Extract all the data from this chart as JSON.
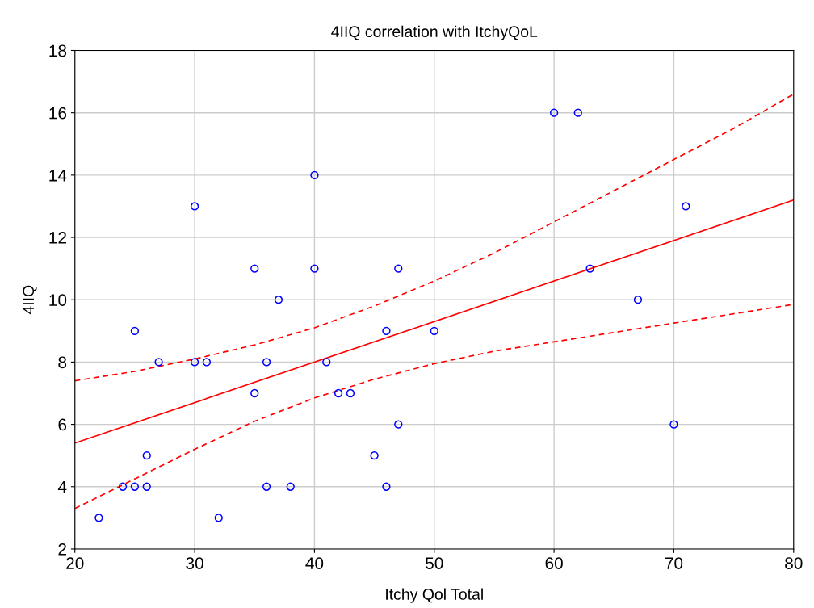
{
  "chart_data": {
    "type": "scatter",
    "title": "4IIQ correlation with ItchyQoL",
    "xlabel": "Itchy Qol Total",
    "ylabel": "4IIQ",
    "xlim": [
      20,
      80
    ],
    "xticks": [
      20,
      30,
      40,
      50,
      60,
      70,
      80
    ],
    "ylim": [
      2,
      18
    ],
    "yticks": [
      2,
      4,
      6,
      8,
      10,
      12,
      14,
      16,
      18
    ],
    "grid": true,
    "series": [
      {
        "color": "#0000ff",
        "marker": "circle",
        "x": [
          22,
          24,
          25,
          25,
          26,
          26,
          27,
          30,
          30,
          31,
          32,
          35,
          35,
          36,
          36,
          37,
          38,
          40,
          40,
          41,
          42,
          43,
          45,
          46,
          46,
          47,
          47,
          50,
          60,
          62,
          63,
          67,
          70,
          71
        ],
        "values": [
          3,
          4,
          4,
          9,
          5,
          4,
          8,
          13,
          8,
          8,
          3,
          11,
          7,
          8,
          4,
          10,
          4,
          14,
          11,
          8,
          7,
          7,
          5,
          9,
          4,
          11,
          6,
          9,
          16,
          16,
          11,
          10,
          6,
          13
        ]
      },
      {
        "type": "line",
        "color": "#ff0000",
        "line_style": "solid",
        "x": [
          20,
          80
        ],
        "values": [
          5.4,
          13.2
        ]
      },
      {
        "type": "line",
        "color": "#ff0000",
        "line_style": "dashed",
        "x": [
          20,
          25,
          30,
          35,
          40,
          45,
          50,
          55,
          60,
          65,
          70,
          75,
          80
        ],
        "values": [
          7.4,
          7.7,
          8.1,
          8.55,
          9.1,
          9.8,
          10.6,
          11.5,
          12.5,
          13.5,
          14.5,
          15.5,
          16.6
        ]
      },
      {
        "type": "line",
        "color": "#ff0000",
        "line_style": "dashed",
        "x": [
          20,
          25,
          30,
          35,
          40,
          45,
          50,
          55,
          60,
          65,
          70,
          75,
          80
        ],
        "values": [
          3.3,
          4.25,
          5.2,
          6.1,
          6.85,
          7.45,
          7.95,
          8.35,
          8.65,
          8.95,
          9.25,
          9.55,
          9.85
        ]
      }
    ]
  }
}
